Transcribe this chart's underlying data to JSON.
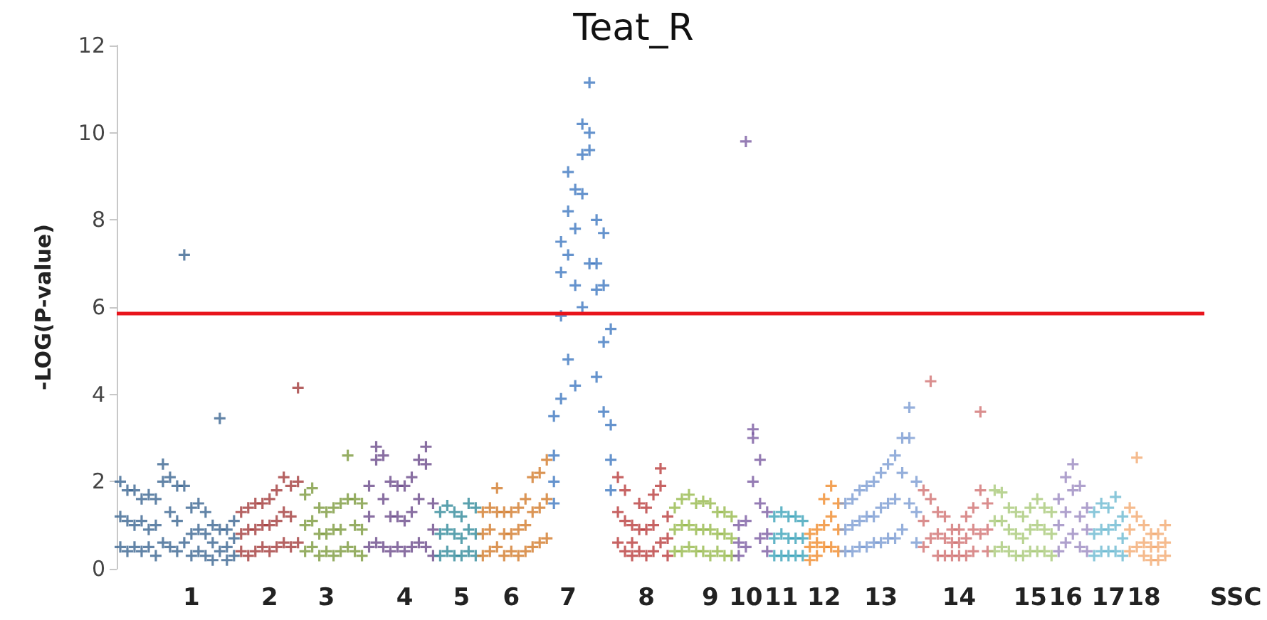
{
  "chart_data": {
    "type": "scatter",
    "title": "Teat_R",
    "xlabel": "SSC",
    "ylabel": "-LOG(P-value)",
    "marker": "cross",
    "ylim": [
      0,
      12
    ],
    "yticks": [
      0,
      2,
      4,
      6,
      8,
      10,
      12
    ],
    "categories": [
      null,
      null,
      null,
      null,
      null,
      null,
      null,
      null,
      null,
      null,
      "1",
      null,
      null,
      null,
      null,
      null,
      null,
      null,
      null,
      null,
      null,
      "2",
      null,
      null,
      null,
      null,
      null,
      null,
      null,
      "3",
      null,
      null,
      null,
      null,
      null,
      null,
      null,
      null,
      null,
      null,
      "4",
      null,
      null,
      null,
      null,
      null,
      null,
      null,
      "5",
      null,
      null,
      null,
      null,
      null,
      null,
      "6",
      null,
      null,
      null,
      null,
      null,
      null,
      null,
      "7",
      null,
      null,
      null,
      null,
      null,
      null,
      null,
      null,
      null,
      null,
      "8",
      null,
      null,
      null,
      null,
      null,
      null,
      null,
      null,
      "9",
      null,
      null,
      null,
      null,
      "10",
      null,
      null,
      null,
      null,
      "11",
      null,
      null,
      null,
      null,
      null,
      "12",
      null,
      null,
      null,
      null,
      null,
      null,
      null,
      "13",
      null,
      null,
      null,
      null,
      null,
      null,
      null,
      null,
      null,
      null,
      "14",
      null,
      null,
      null,
      null,
      null,
      null,
      null,
      null,
      null,
      "15",
      null,
      null,
      null,
      null,
      "16",
      null,
      null,
      null,
      null,
      null,
      "17",
      null,
      null,
      null,
      null,
      "18",
      null,
      null,
      null,
      null,
      null,
      null,
      null,
      null
    ],
    "ref_lines": [
      {
        "axis": "y",
        "value": 5.87,
        "color": "#e8141c"
      }
    ],
    "series": [
      {
        "values": [
          2.0,
          1.8,
          1.8,
          1.6,
          1.7,
          1.6,
          2.4,
          2.1,
          1.9,
          7.2,
          1.4,
          1.5,
          1.3,
          1.0,
          3.45,
          0.9,
          1.1,
          1.3,
          1.4,
          1.5,
          1.5,
          1.6,
          1.8,
          2.1,
          1.9,
          4.15,
          1.7,
          1.85,
          1.4,
          1.3,
          1.4,
          1.5,
          2.6,
          1.6,
          1.5,
          1.9,
          2.8,
          2.6,
          2.0,
          1.9,
          1.9,
          2.1,
          2.5,
          2.8,
          1.5,
          1.3,
          1.45,
          1.3,
          1.2,
          1.5,
          1.4,
          1.3,
          1.4,
          1.85,
          1.3,
          1.3,
          1.4,
          1.6,
          2.1,
          2.2,
          2.5,
          3.5,
          7.5,
          9.1,
          8.7,
          10.2,
          11.15,
          8.0,
          7.7,
          5.5,
          2.1,
          1.8,
          1.0,
          1.5,
          1.4,
          1.7,
          2.3,
          1.2,
          1.4,
          1.6,
          1.7,
          1.5,
          1.55,
          1.5,
          1.3,
          1.3,
          1.2,
          1.0,
          9.8,
          3.2,
          2.5,
          1.3,
          1.2,
          1.3,
          1.2,
          1.2,
          1.1,
          0.8,
          0.9,
          1.6,
          1.9,
          1.5,
          1.5,
          1.6,
          1.8,
          1.9,
          2.0,
          2.2,
          2.4,
          2.6,
          3.0,
          3.7,
          2.0,
          1.8,
          4.3,
          1.3,
          1.2,
          0.9,
          0.9,
          1.2,
          1.4,
          3.6,
          1.5,
          1.8,
          1.75,
          1.4,
          1.3,
          1.2,
          1.4,
          1.6,
          1.4,
          1.3,
          1.6,
          2.1,
          2.4,
          1.9,
          1.4,
          1.3,
          1.5,
          1.4,
          1.65,
          1.2,
          1.4,
          2.55,
          1.0,
          0.8,
          0.8,
          1.0,
          null,
          null,
          null,
          null,
          null
        ],
        "colors": [
          "#3b6591",
          "#3b6591",
          "#3b6591",
          "#3b6591",
          "#3b6591",
          "#3b6591",
          "#3b6591",
          "#3b6591",
          "#3b6591",
          "#3b6591",
          "#3b6591",
          "#3b6591",
          "#3b6591",
          "#3b6591",
          "#3b6591",
          "#3b6591",
          "#3b6591",
          "#a33b3b",
          "#a33b3b",
          "#a33b3b",
          "#a33b3b",
          "#a33b3b",
          "#a33b3b",
          "#a33b3b",
          "#a33b3b",
          "#a33b3b",
          "#7c9a3d",
          "#7c9a3d",
          "#7c9a3d",
          "#7c9a3d",
          "#7c9a3d",
          "#7c9a3d",
          "#7c9a3d",
          "#7c9a3d",
          "#7c9a3d",
          "#6b4b8b",
          "#6b4b8b",
          "#6b4b8b",
          "#6b4b8b",
          "#6b4b8b",
          "#6b4b8b",
          "#6b4b8b",
          "#6b4b8b",
          "#6b4b8b",
          "#6b4b8b",
          "#31899a",
          "#31899a",
          "#31899a",
          "#31899a",
          "#31899a",
          "#31899a",
          "#d27b2b",
          "#d27b2b",
          "#d27b2b",
          "#d27b2b",
          "#d27b2b",
          "#d27b2b",
          "#d27b2b",
          "#d27b2b",
          "#d27b2b",
          "#d27b2b",
          "#3f78c0",
          "#3f78c0",
          "#3f78c0",
          "#3f78c0",
          "#3f78c0",
          "#3f78c0",
          "#3f78c0",
          "#3f78c0",
          "#3f78c0",
          "#b93c3c",
          "#b93c3c",
          "#b93c3c",
          "#b93c3c",
          "#b93c3c",
          "#b93c3c",
          "#b93c3c",
          "#b93c3c",
          "#96b94b",
          "#96b94b",
          "#96b94b",
          "#96b94b",
          "#96b94b",
          "#96b94b",
          "#96b94b",
          "#96b94b",
          "#96b94b",
          "#7b5ba1",
          "#7b5ba1",
          "#7b5ba1",
          "#7b5ba1",
          "#7b5ba1",
          "#3ba2b9",
          "#3ba2b9",
          "#3ba2b9",
          "#3ba2b9",
          "#3ba2b9",
          "#f08b2c",
          "#f08b2c",
          "#f08b2c",
          "#f08b2c",
          "#f08b2c",
          "#7b9bd2",
          "#7b9bd2",
          "#7b9bd2",
          "#7b9bd2",
          "#7b9bd2",
          "#7b9bd2",
          "#7b9bd2",
          "#7b9bd2",
          "#7b9bd2",
          "#7b9bd2",
          "#7b9bd2",
          "#d17272",
          "#d17272",
          "#d17272",
          "#d17272",
          "#d17272",
          "#d17272",
          "#d17272",
          "#d17272",
          "#d17272",
          "#d17272",
          "#a9c979",
          "#a9c979",
          "#a9c979",
          "#a9c979",
          "#a9c979",
          "#a9c979",
          "#a9c979",
          "#a9c979",
          "#a9c979",
          "#9b89c1",
          "#9b89c1",
          "#9b89c1",
          "#9b89c1",
          "#9b89c1",
          "#6cb9d1",
          "#6cb9d1",
          "#6cb9d1",
          "#6cb9d1",
          "#6cb9d1",
          "#f2aa72",
          "#f2aa72",
          "#f2aa72",
          "#f2aa72",
          "#f2aa72",
          "#f2aa72",
          null,
          null,
          null,
          null,
          null
        ]
      },
      {
        "values": [
          1.2,
          1.1,
          1.0,
          1.1,
          0.9,
          1.0,
          2.0,
          1.3,
          1.1,
          1.9,
          0.8,
          0.9,
          0.8,
          0.6,
          0.9,
          0.5,
          0.7,
          0.8,
          0.9,
          0.9,
          1.0,
          1.0,
          1.1,
          1.3,
          1.2,
          2.0,
          1.0,
          1.1,
          0.8,
          0.8,
          0.9,
          0.9,
          1.6,
          1.0,
          0.9,
          1.2,
          2.5,
          1.6,
          1.2,
          1.2,
          1.1,
          1.3,
          1.6,
          2.4,
          0.9,
          0.8,
          0.9,
          0.8,
          0.7,
          0.9,
          0.8,
          0.8,
          0.9,
          1.3,
          0.8,
          0.8,
          0.9,
          1.0,
          1.3,
          1.4,
          1.6,
          2.6,
          5.8,
          7.2,
          6.5,
          9.5,
          9.6,
          6.4,
          5.2,
          3.3,
          1.3,
          1.1,
          0.6,
          0.9,
          0.9,
          1.0,
          1.9,
          0.7,
          0.9,
          1.0,
          1.0,
          0.9,
          0.9,
          0.9,
          0.8,
          0.8,
          0.7,
          0.6,
          1.1,
          3.0,
          1.5,
          0.8,
          0.7,
          0.8,
          0.7,
          0.7,
          0.7,
          0.5,
          0.6,
          1.0,
          1.2,
          0.9,
          0.9,
          1.0,
          1.1,
          1.2,
          1.2,
          1.4,
          1.5,
          1.6,
          2.2,
          3.0,
          1.3,
          1.1,
          1.6,
          0.8,
          0.7,
          0.6,
          0.6,
          0.7,
          0.9,
          1.8,
          0.9,
          1.1,
          1.1,
          0.9,
          0.8,
          0.7,
          0.9,
          1.0,
          0.9,
          0.8,
          1.0,
          1.3,
          1.8,
          1.2,
          0.9,
          0.8,
          0.9,
          0.9,
          1.0,
          0.7,
          0.9,
          1.2,
          0.6,
          0.5,
          0.5,
          0.6,
          null,
          null,
          null,
          null,
          null
        ],
        "colors": [
          "#3b6591",
          "#3b6591",
          "#3b6591",
          "#3b6591",
          "#3b6591",
          "#3b6591",
          "#3b6591",
          "#3b6591",
          "#3b6591",
          "#3b6591",
          "#3b6591",
          "#3b6591",
          "#3b6591",
          "#3b6591",
          "#3b6591",
          "#3b6591",
          "#3b6591",
          "#a33b3b",
          "#a33b3b",
          "#a33b3b",
          "#a33b3b",
          "#a33b3b",
          "#a33b3b",
          "#a33b3b",
          "#a33b3b",
          "#a33b3b",
          "#7c9a3d",
          "#7c9a3d",
          "#7c9a3d",
          "#7c9a3d",
          "#7c9a3d",
          "#7c9a3d",
          "#7c9a3d",
          "#7c9a3d",
          "#7c9a3d",
          "#6b4b8b",
          "#6b4b8b",
          "#6b4b8b",
          "#6b4b8b",
          "#6b4b8b",
          "#6b4b8b",
          "#6b4b8b",
          "#6b4b8b",
          "#6b4b8b",
          "#6b4b8b",
          "#31899a",
          "#31899a",
          "#31899a",
          "#31899a",
          "#31899a",
          "#31899a",
          "#d27b2b",
          "#d27b2b",
          "#d27b2b",
          "#d27b2b",
          "#d27b2b",
          "#d27b2b",
          "#d27b2b",
          "#d27b2b",
          "#d27b2b",
          "#d27b2b",
          "#3f78c0",
          "#3f78c0",
          "#3f78c0",
          "#3f78c0",
          "#3f78c0",
          "#3f78c0",
          "#3f78c0",
          "#3f78c0",
          "#3f78c0",
          "#b93c3c",
          "#b93c3c",
          "#b93c3c",
          "#b93c3c",
          "#b93c3c",
          "#b93c3c",
          "#b93c3c",
          "#b93c3c",
          "#96b94b",
          "#96b94b",
          "#96b94b",
          "#96b94b",
          "#96b94b",
          "#96b94b",
          "#96b94b",
          "#96b94b",
          "#96b94b",
          "#7b5ba1",
          "#7b5ba1",
          "#7b5ba1",
          "#7b5ba1",
          "#7b5ba1",
          "#3ba2b9",
          "#3ba2b9",
          "#3ba2b9",
          "#3ba2b9",
          "#3ba2b9",
          "#f08b2c",
          "#f08b2c",
          "#f08b2c",
          "#f08b2c",
          "#f08b2c",
          "#7b9bd2",
          "#7b9bd2",
          "#7b9bd2",
          "#7b9bd2",
          "#7b9bd2",
          "#7b9bd2",
          "#7b9bd2",
          "#7b9bd2",
          "#7b9bd2",
          "#7b9bd2",
          "#7b9bd2",
          "#d17272",
          "#d17272",
          "#d17272",
          "#d17272",
          "#d17272",
          "#d17272",
          "#d17272",
          "#d17272",
          "#d17272",
          "#d17272",
          "#a9c979",
          "#a9c979",
          "#a9c979",
          "#a9c979",
          "#a9c979",
          "#a9c979",
          "#a9c979",
          "#a9c979",
          "#a9c979",
          "#9b89c1",
          "#9b89c1",
          "#9b89c1",
          "#9b89c1",
          "#9b89c1",
          "#6cb9d1",
          "#6cb9d1",
          "#6cb9d1",
          "#6cb9d1",
          "#6cb9d1",
          "#f2aa72",
          "#f2aa72",
          "#f2aa72",
          "#f2aa72",
          "#f2aa72",
          "#f2aa72",
          null,
          null,
          null,
          null,
          null
        ]
      },
      {
        "values": [
          0.5,
          0.4,
          0.5,
          0.4,
          0.5,
          0.3,
          0.6,
          0.5,
          0.4,
          0.6,
          0.3,
          0.4,
          0.3,
          0.2,
          0.4,
          0.2,
          0.3,
          0.4,
          0.3,
          0.4,
          0.5,
          0.4,
          0.5,
          0.6,
          0.5,
          0.6,
          0.4,
          0.5,
          0.3,
          0.4,
          0.3,
          0.4,
          0.5,
          0.4,
          0.3,
          0.5,
          0.6,
          0.5,
          0.4,
          0.5,
          0.4,
          0.5,
          0.6,
          0.5,
          0.3,
          0.3,
          0.4,
          0.3,
          0.3,
          0.4,
          0.3,
          0.3,
          0.4,
          0.5,
          0.3,
          0.4,
          0.3,
          0.4,
          0.5,
          0.6,
          0.7,
          1.5,
          3.9,
          4.8,
          4.2,
          6.0,
          7.0,
          4.4,
          3.6,
          1.8,
          0.6,
          0.4,
          0.3,
          0.4,
          0.3,
          0.4,
          0.6,
          0.3,
          0.4,
          0.4,
          0.5,
          0.4,
          0.4,
          0.3,
          0.4,
          0.3,
          0.3,
          0.3,
          0.5,
          2.0,
          0.7,
          0.4,
          0.3,
          0.3,
          0.3,
          0.3,
          0.3,
          0.2,
          0.3,
          0.5,
          0.5,
          0.4,
          0.4,
          0.4,
          0.5,
          0.5,
          0.6,
          0.6,
          0.7,
          0.7,
          0.9,
          1.5,
          0.6,
          0.5,
          0.7,
          0.3,
          0.3,
          0.3,
          0.3,
          0.3,
          0.4,
          0.8,
          0.4,
          0.4,
          0.5,
          0.4,
          0.3,
          0.3,
          0.4,
          0.4,
          0.4,
          0.3,
          0.4,
          0.6,
          0.8,
          0.5,
          0.4,
          0.3,
          0.4,
          0.4,
          0.4,
          0.3,
          0.4,
          0.5,
          0.3,
          0.2,
          0.2,
          0.3,
          null,
          null,
          null,
          null,
          null
        ],
        "colors": [
          "#3b6591",
          "#3b6591",
          "#3b6591",
          "#3b6591",
          "#3b6591",
          "#3b6591",
          "#3b6591",
          "#3b6591",
          "#3b6591",
          "#3b6591",
          "#3b6591",
          "#3b6591",
          "#3b6591",
          "#3b6591",
          "#3b6591",
          "#3b6591",
          "#3b6591",
          "#a33b3b",
          "#a33b3b",
          "#a33b3b",
          "#a33b3b",
          "#a33b3b",
          "#a33b3b",
          "#a33b3b",
          "#a33b3b",
          "#a33b3b",
          "#7c9a3d",
          "#7c9a3d",
          "#7c9a3d",
          "#7c9a3d",
          "#7c9a3d",
          "#7c9a3d",
          "#7c9a3d",
          "#7c9a3d",
          "#7c9a3d",
          "#6b4b8b",
          "#6b4b8b",
          "#6b4b8b",
          "#6b4b8b",
          "#6b4b8b",
          "#6b4b8b",
          "#6b4b8b",
          "#6b4b8b",
          "#6b4b8b",
          "#6b4b8b",
          "#31899a",
          "#31899a",
          "#31899a",
          "#31899a",
          "#31899a",
          "#31899a",
          "#d27b2b",
          "#d27b2b",
          "#d27b2b",
          "#d27b2b",
          "#d27b2b",
          "#d27b2b",
          "#d27b2b",
          "#d27b2b",
          "#d27b2b",
          "#d27b2b",
          "#3f78c0",
          "#3f78c0",
          "#3f78c0",
          "#3f78c0",
          "#3f78c0",
          "#3f78c0",
          "#3f78c0",
          "#3f78c0",
          "#3f78c0",
          "#b93c3c",
          "#b93c3c",
          "#b93c3c",
          "#b93c3c",
          "#b93c3c",
          "#b93c3c",
          "#b93c3c",
          "#b93c3c",
          "#96b94b",
          "#96b94b",
          "#96b94b",
          "#96b94b",
          "#96b94b",
          "#96b94b",
          "#96b94b",
          "#96b94b",
          "#96b94b",
          "#7b5ba1",
          "#7b5ba1",
          "#7b5ba1",
          "#7b5ba1",
          "#7b5ba1",
          "#3ba2b9",
          "#3ba2b9",
          "#3ba2b9",
          "#3ba2b9",
          "#3ba2b9",
          "#f08b2c",
          "#f08b2c",
          "#f08b2c",
          "#f08b2c",
          "#f08b2c",
          "#7b9bd2",
          "#7b9bd2",
          "#7b9bd2",
          "#7b9bd2",
          "#7b9bd2",
          "#7b9bd2",
          "#7b9bd2",
          "#7b9bd2",
          "#7b9bd2",
          "#7b9bd2",
          "#7b9bd2",
          "#d17272",
          "#d17272",
          "#d17272",
          "#d17272",
          "#d17272",
          "#d17272",
          "#d17272",
          "#d17272",
          "#d17272",
          "#d17272",
          "#a9c979",
          "#a9c979",
          "#a9c979",
          "#a9c979",
          "#a9c979",
          "#a9c979",
          "#a9c979",
          "#a9c979",
          "#a9c979",
          "#9b89c1",
          "#9b89c1",
          "#9b89c1",
          "#9b89c1",
          "#9b89c1",
          "#6cb9d1",
          "#6cb9d1",
          "#6cb9d1",
          "#6cb9d1",
          "#6cb9d1",
          "#f2aa72",
          "#f2aa72",
          "#f2aa72",
          "#f2aa72",
          "#f2aa72",
          "#f2aa72",
          null,
          null,
          null,
          null,
          null
        ]
      },
      {
        "color": "#3f78c0",
        "values": [
          null,
          null,
          null,
          null,
          null,
          null,
          null,
          null,
          null,
          null,
          null,
          null,
          null,
          null,
          null,
          null,
          null,
          null,
          null,
          null,
          null,
          null,
          null,
          null,
          null,
          null,
          null,
          null,
          null,
          null,
          null,
          null,
          null,
          null,
          null,
          null,
          null,
          null,
          null,
          null,
          null,
          null,
          null,
          null,
          null,
          null,
          null,
          null,
          null,
          null,
          null,
          null,
          null,
          null,
          null,
          null,
          null,
          null,
          null,
          null,
          null,
          2.0,
          6.8,
          8.2,
          7.8,
          8.6,
          10.0,
          7.0,
          6.5,
          2.5,
          null,
          null,
          null,
          null,
          null,
          null,
          null,
          null,
          null,
          null,
          null,
          null,
          null,
          null,
          null,
          null,
          null,
          null,
          null,
          null,
          null,
          null,
          null,
          null,
          null,
          null,
          null,
          null,
          null,
          null,
          null,
          null,
          null,
          null,
          null,
          null,
          null,
          null,
          null,
          null,
          null,
          null,
          null,
          null,
          null,
          null,
          null,
          null,
          null,
          null,
          null,
          null,
          null,
          null,
          null,
          null,
          null,
          null,
          null,
          null,
          null,
          null,
          null,
          null,
          null,
          null,
          null,
          null,
          null,
          null,
          null,
          null,
          null,
          null,
          null,
          null,
          null,
          null,
          null,
          null,
          null,
          null,
          null
        ]
      }
    ]
  }
}
